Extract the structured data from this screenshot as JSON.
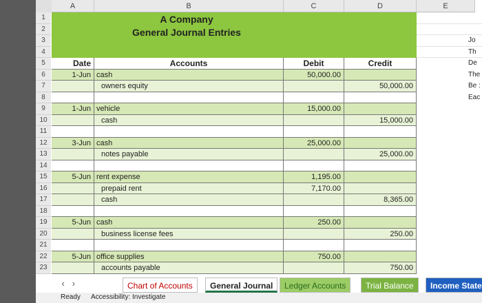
{
  "column_headers": [
    "A",
    "B",
    "C",
    "D",
    "E"
  ],
  "title": "A Company",
  "subtitle": "General Journal Entries",
  "rows": [
    {
      "number": "1"
    },
    {
      "number": "2"
    },
    {
      "number": "3",
      "side": "Jo"
    },
    {
      "number": "4",
      "side": "Th"
    },
    {
      "number": "5",
      "date": "Date",
      "account": "Accounts",
      "debit": "Debit",
      "credit": "Credit",
      "side": "De"
    },
    {
      "number": "6",
      "date": "1-Jun",
      "account": "cash",
      "debit": "50,000.00",
      "side": "The"
    },
    {
      "number": "7",
      "account": "owners equity",
      "credit": "50,000.00",
      "side": "Be :"
    },
    {
      "number": "8",
      "side": "Eac"
    },
    {
      "number": "9",
      "date": "1-Jun",
      "account": "vehicle",
      "debit": "15,000.00"
    },
    {
      "number": "10",
      "account": "cash",
      "credit": "15,000.00"
    },
    {
      "number": "11"
    },
    {
      "number": "12",
      "date": "3-Jun",
      "account": "cash",
      "debit": "25,000.00"
    },
    {
      "number": "13",
      "account": "notes payable",
      "credit": "25,000.00"
    },
    {
      "number": "14"
    },
    {
      "number": "15",
      "date": "5-Jun",
      "account": "rent expense",
      "debit": "1,195.00"
    },
    {
      "number": "16",
      "account": "prepaid rent",
      "debit": "7,170.00"
    },
    {
      "number": "17",
      "account": "cash",
      "credit": "8,365.00"
    },
    {
      "number": "18"
    },
    {
      "number": "19",
      "date": "5-Jun",
      "account": "cash",
      "debit": "250.00"
    },
    {
      "number": "20",
      "account": "business license fees",
      "credit": "250.00"
    },
    {
      "number": "21"
    },
    {
      "number": "22",
      "date": "5-Jun",
      "account": "office supplies",
      "debit": "750.00"
    },
    {
      "number": "23",
      "account": "accounts payable",
      "credit": "750.00"
    }
  ],
  "tabs": [
    "Chart of Accounts",
    "General Journal",
    "Ledger Accounts",
    "Trial Balance",
    "Income State"
  ],
  "status": {
    "ready": "Ready",
    "accessibility": "Accessibility: Investigate"
  }
}
